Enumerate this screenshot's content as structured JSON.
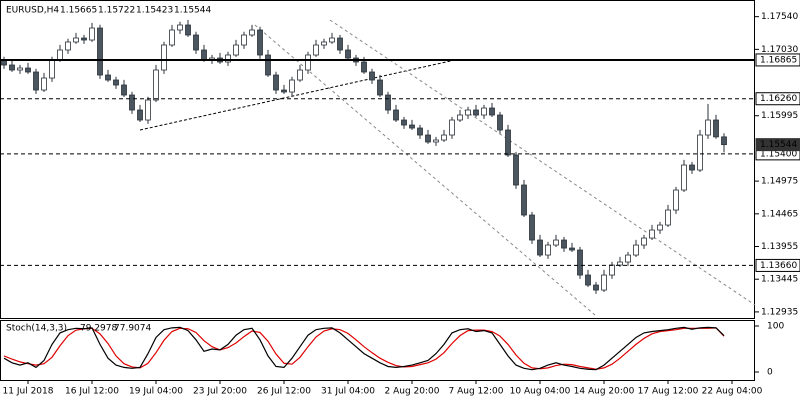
{
  "chart_data": {
    "type": "candlestick",
    "title": "EURUSD,H4",
    "bull_color": "#ffffff",
    "bear_color": "#4a5560",
    "outline_color": "#2b3238",
    "grid": false,
    "ylim": [
      1.1284,
      1.178
    ],
    "yticks": [
      {
        "value": 1.1754,
        "label": "1.17540"
      },
      {
        "value": 1.1703,
        "label": "1.17030"
      },
      {
        "value": 1.15995,
        "label": "1.15995"
      },
      {
        "value": 1.14975,
        "label": "1.14975"
      },
      {
        "value": 1.14465,
        "label": "1.14465"
      },
      {
        "value": 1.13955,
        "label": "1.13955"
      },
      {
        "value": 1.13445,
        "label": "1.13445"
      },
      {
        "value": 1.12935,
        "label": "1.12935"
      }
    ],
    "levels": [
      {
        "value": 1.16865,
        "label": "1.16865",
        "style": "solid"
      },
      {
        "value": 1.1626,
        "label": "1.16260",
        "style": "dashed"
      },
      {
        "value": 1.154,
        "label": "1.15400",
        "style": "dashed"
      },
      {
        "value": 1.1366,
        "label": "1.13660",
        "style": "dashed"
      }
    ],
    "xticks": [
      {
        "value": 3,
        "label": "11 Jul 2018"
      },
      {
        "value": 11,
        "label": "16 Jul 12:00"
      },
      {
        "value": 19,
        "label": "19 Jul 04:00"
      },
      {
        "value": 27,
        "label": "23 Jul 20:00"
      },
      {
        "value": 35,
        "label": "26 Jul 12:00"
      },
      {
        "value": 43,
        "label": "31 Jul 04:00"
      },
      {
        "value": 51,
        "label": "2 Aug 20:00"
      },
      {
        "value": 59,
        "label": "7 Aug 12:00"
      },
      {
        "value": 67,
        "label": "10 Aug 04:00"
      },
      {
        "value": 75,
        "label": "14 Aug 20:00"
      },
      {
        "value": 83,
        "label": "17 Aug 12:00"
      },
      {
        "value": 91,
        "label": "22 Aug 04:00"
      }
    ],
    "open": [
      1.16864,
      1.16786,
      1.16708,
      1.16739,
      1.16677,
      1.16396,
      1.16583,
      1.16864,
      1.1702,
      1.17145,
      1.17207,
      1.17176,
      1.17363,
      1.1663,
      1.16552,
      1.16474,
      1.16318,
      1.16084,
      1.15928,
      1.1624,
      1.16708,
      1.17098,
      1.17332,
      1.1741,
      1.17254,
      1.1702,
      1.16864,
      1.16895,
      1.16833,
      1.16942,
      1.17098,
      1.17254,
      1.17332,
      1.16942,
      1.1663,
      1.16396,
      1.16365,
      1.16552,
      1.16708,
      1.16942,
      1.17098,
      1.17145,
      1.17207,
      1.1702,
      1.16895,
      1.16833,
      1.16677,
      1.16552,
      1.16318,
      1.16084,
      1.15928,
      1.1585,
      1.15803,
      1.15694,
      1.15585,
      1.15616,
      1.15694,
      1.15928,
      1.16006,
      1.16084,
      1.16006,
      1.16115,
      1.16006,
      1.15772,
      1.15382,
      1.14914,
      1.14446,
      1.14056,
      1.13822,
      1.13978,
      1.14056,
      1.13931,
      1.139,
      1.1351,
      1.13354,
      1.13276,
      1.1351,
      1.13666,
      1.13713,
      1.13822,
      1.13978,
      1.14087,
      1.14212,
      1.1429,
      1.14524,
      1.14836,
      1.15226,
      1.15148,
      1.15694,
      1.15928,
      1.15665
    ],
    "high": [
      1.16914,
      1.16866,
      1.16789,
      1.16819,
      1.16727,
      1.16663,
      1.16914,
      1.171,
      1.17195,
      1.17287,
      1.17257,
      1.17443,
      1.17413,
      1.1671,
      1.16602,
      1.16554,
      1.16368,
      1.16164,
      1.1629,
      1.16788,
      1.17148,
      1.17412,
      1.1746,
      1.1749,
      1.17304,
      1.171,
      1.16945,
      1.16975,
      1.16992,
      1.17178,
      1.17304,
      1.17412,
      1.17382,
      1.17022,
      1.1668,
      1.16476,
      1.16602,
      1.16788,
      1.16992,
      1.17178,
      1.17195,
      1.17287,
      1.17257,
      1.171,
      1.16945,
      1.16913,
      1.16727,
      1.16632,
      1.16368,
      1.16164,
      1.15978,
      1.1593,
      1.15853,
      1.15774,
      1.15666,
      1.15774,
      1.15978,
      1.16086,
      1.16134,
      1.16164,
      1.16165,
      1.16195,
      1.16056,
      1.15852,
      1.15432,
      1.14994,
      1.14496,
      1.14136,
      1.14028,
      1.14136,
      1.14106,
      1.14011,
      1.1395,
      1.1359,
      1.13404,
      1.1359,
      1.13716,
      1.13793,
      1.13872,
      1.14058,
      1.14137,
      1.14292,
      1.1434,
      1.14604,
      1.14886,
      1.15306,
      1.15276,
      1.15774,
      1.16178,
      1.16008,
      1.15722
    ],
    "low": [
      1.16726,
      1.16678,
      1.16648,
      1.16647,
      1.16336,
      1.16366,
      1.16523,
      1.16834,
      1.1696,
      1.17115,
      1.17116,
      1.17146,
      1.1657,
      1.16522,
      1.16414,
      1.16288,
      1.16024,
      1.15898,
      1.15868,
      1.1621,
      1.16648,
      1.17068,
      1.17272,
      1.17224,
      1.1696,
      1.16834,
      1.16804,
      1.16803,
      1.16773,
      1.16912,
      1.17038,
      1.17224,
      1.16882,
      1.166,
      1.16336,
      1.16335,
      1.16305,
      1.16522,
      1.16648,
      1.16912,
      1.17038,
      1.17115,
      1.1696,
      1.16865,
      1.16773,
      1.16647,
      1.16492,
      1.16288,
      1.16024,
      1.15898,
      1.1579,
      1.15773,
      1.15634,
      1.15555,
      1.15525,
      1.15586,
      1.15634,
      1.15898,
      1.15946,
      1.15976,
      1.15946,
      1.15976,
      1.15712,
      1.15352,
      1.14854,
      1.14416,
      1.13996,
      1.13792,
      1.13762,
      1.13948,
      1.13871,
      1.1387,
      1.1345,
      1.13324,
      1.13216,
      1.13246,
      1.1345,
      1.13636,
      1.13653,
      1.13792,
      1.13918,
      1.14057,
      1.14152,
      1.1426,
      1.14464,
      1.14806,
      1.15088,
      1.15118,
      1.15634,
      1.15635,
      1.15423
    ],
    "close": [
      1.16786,
      1.16708,
      1.16739,
      1.16677,
      1.16396,
      1.16583,
      1.16864,
      1.1702,
      1.17145,
      1.17207,
      1.17176,
      1.17363,
      1.1663,
      1.16552,
      1.16474,
      1.16318,
      1.16084,
      1.15928,
      1.1624,
      1.16708,
      1.17098,
      1.17332,
      1.1741,
      1.17254,
      1.1702,
      1.16864,
      1.16895,
      1.16833,
      1.16942,
      1.17098,
      1.17254,
      1.17332,
      1.16942,
      1.1663,
      1.16396,
      1.16365,
      1.16552,
      1.16708,
      1.16942,
      1.17098,
      1.17145,
      1.17207,
      1.1702,
      1.16895,
      1.16833,
      1.16677,
      1.16552,
      1.16318,
      1.16084,
      1.15928,
      1.1585,
      1.15803,
      1.15694,
      1.15585,
      1.15616,
      1.15694,
      1.15928,
      1.16006,
      1.16084,
      1.16006,
      1.16115,
      1.16006,
      1.15772,
      1.15382,
      1.14914,
      1.14446,
      1.14056,
      1.13822,
      1.13978,
      1.14056,
      1.13931,
      1.139,
      1.1351,
      1.13354,
      1.13276,
      1.1351,
      1.13666,
      1.13713,
      1.13822,
      1.13978,
      1.14087,
      1.14212,
      1.1429,
      1.14524,
      1.14836,
      1.15226,
      1.15148,
      1.15694,
      1.15928,
      1.15665,
      1.15544
    ],
    "indicator": {
      "title": "Stoch(14,3,3)",
      "ylim": [
        0,
        100
      ],
      "yticks": [
        0,
        100
      ],
      "main": {
        "color": "#000000",
        "values": [
          30,
          20,
          15,
          20,
          10,
          25,
          60,
          85,
          92,
          95,
          94,
          96,
          60,
          30,
          15,
          10,
          8,
          10,
          40,
          75,
          92,
          96,
          97,
          90,
          70,
          45,
          50,
          48,
          60,
          80,
          92,
          95,
          70,
          35,
          12,
          10,
          30,
          55,
          80,
          92,
          95,
          96,
          85,
          70,
          55,
          40,
          30,
          20,
          12,
          10,
          12,
          15,
          20,
          25,
          40,
          60,
          85,
          92,
          94,
          88,
          90,
          85,
          60,
          35,
          15,
          8,
          5,
          8,
          15,
          20,
          15,
          12,
          8,
          6,
          5,
          15,
          30,
          45,
          60,
          75,
          85,
          88,
          90,
          92,
          95,
          97,
          93,
          96,
          97,
          96,
          79.2978
        ]
      },
      "signal": {
        "color": "#e00000",
        "values": [
          35,
          28,
          22,
          18,
          15,
          18,
          32,
          57,
          79,
          91,
          94,
          95,
          83,
          62,
          35,
          18,
          11,
          9,
          19,
          42,
          69,
          88,
          95,
          94,
          86,
          68,
          55,
          48,
          53,
          63,
          77,
          89,
          86,
          67,
          39,
          19,
          17,
          32,
          55,
          76,
          89,
          94,
          92,
          84,
          70,
          55,
          42,
          30,
          21,
          14,
          11,
          12,
          16,
          20,
          28,
          42,
          62,
          79,
          90,
          91,
          91,
          88,
          78,
          60,
          37,
          19,
          9,
          7,
          9,
          14,
          17,
          16,
          12,
          9,
          6,
          9,
          17,
          30,
          45,
          60,
          73,
          83,
          88,
          90,
          92,
          95,
          95,
          95,
          95,
          96,
          77.9074
        ]
      }
    }
  }
}
